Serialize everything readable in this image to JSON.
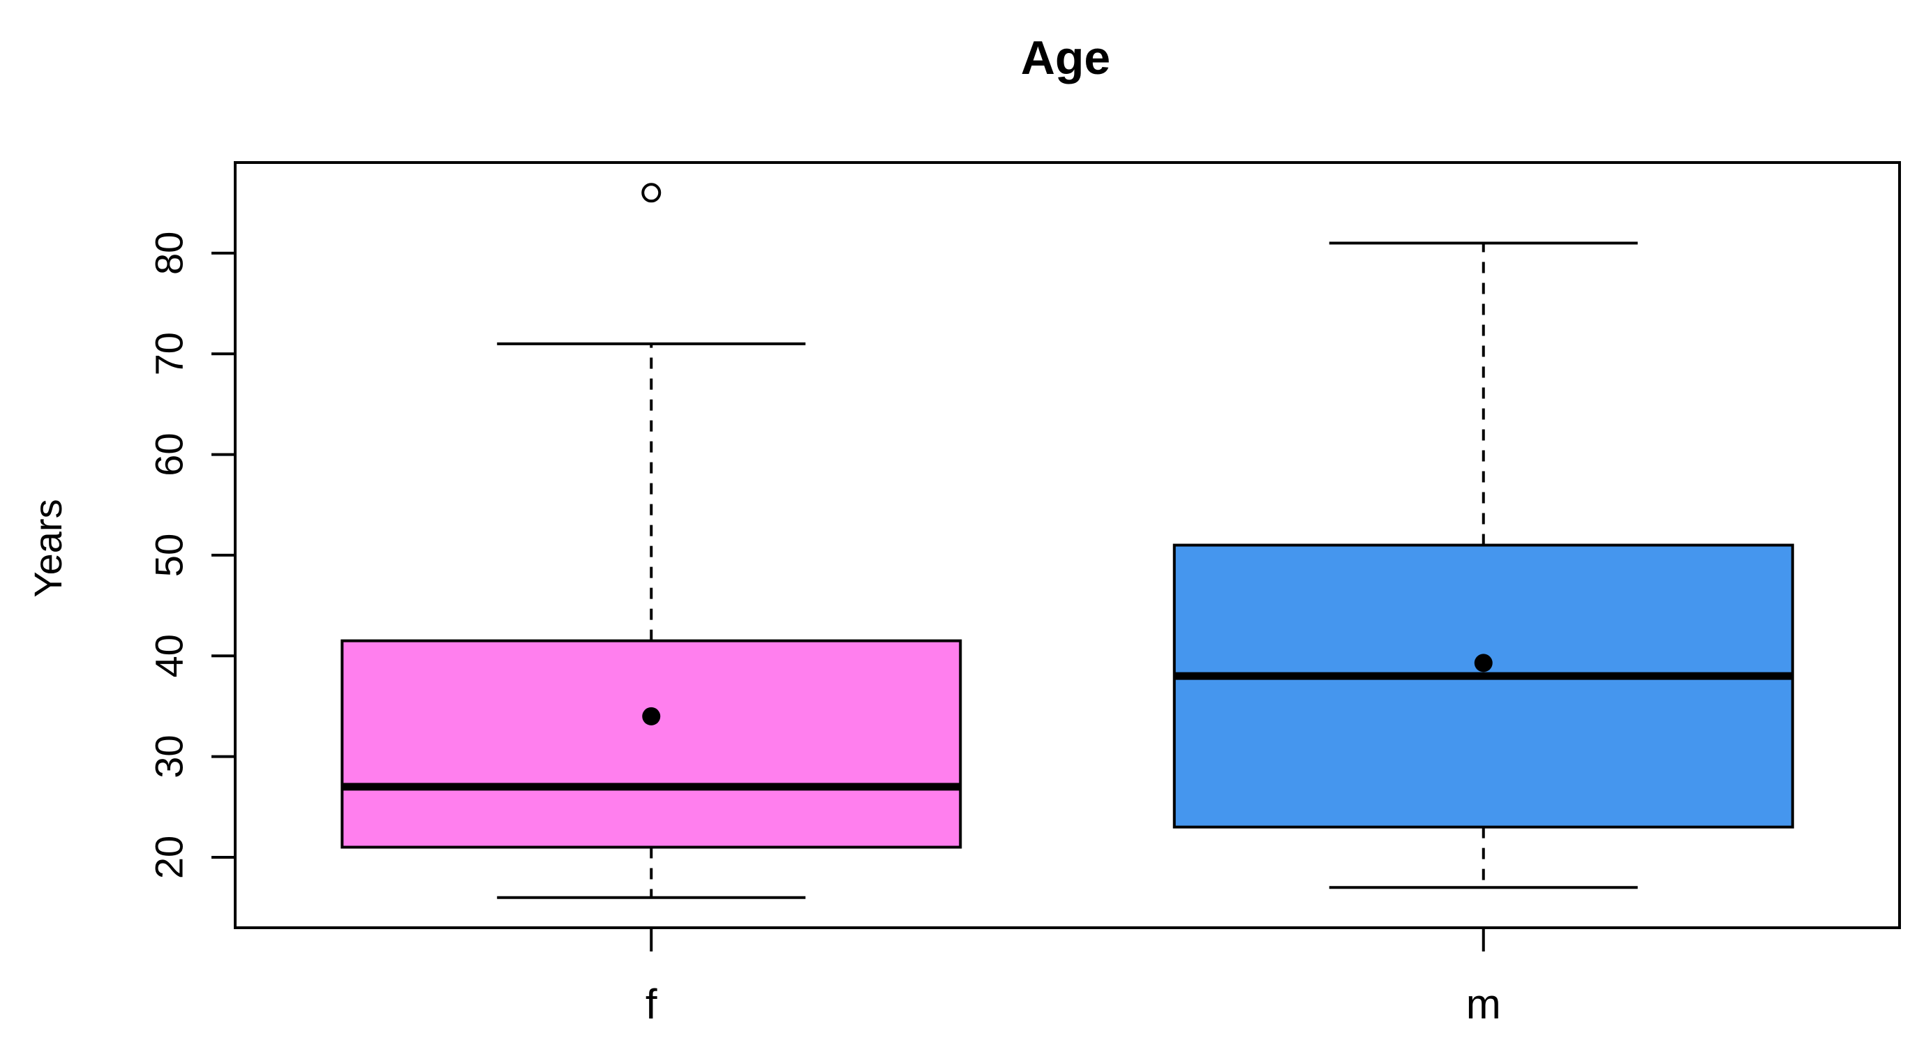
{
  "chart_data": {
    "type": "box",
    "title": "Age",
    "xlabel": "",
    "ylabel": "Years",
    "ylim": [
      13,
      89
    ],
    "yticks": [
      20,
      30,
      40,
      50,
      60,
      70,
      80
    ],
    "categories": [
      "f",
      "m"
    ],
    "grid": false,
    "legend": "none",
    "boxes": [
      {
        "category": "f",
        "whisker_low": 16,
        "q1": 21,
        "median": 27,
        "q3": 41.5,
        "whisker_high": 71,
        "mean": 34,
        "outliers": [
          86
        ],
        "color": "#FF7FEE"
      },
      {
        "category": "m",
        "whisker_low": 17,
        "q1": 23,
        "median": 38,
        "q3": 51,
        "whisker_high": 81,
        "mean": 39.3,
        "outliers": [],
        "color": "#4596EE"
      }
    ]
  }
}
